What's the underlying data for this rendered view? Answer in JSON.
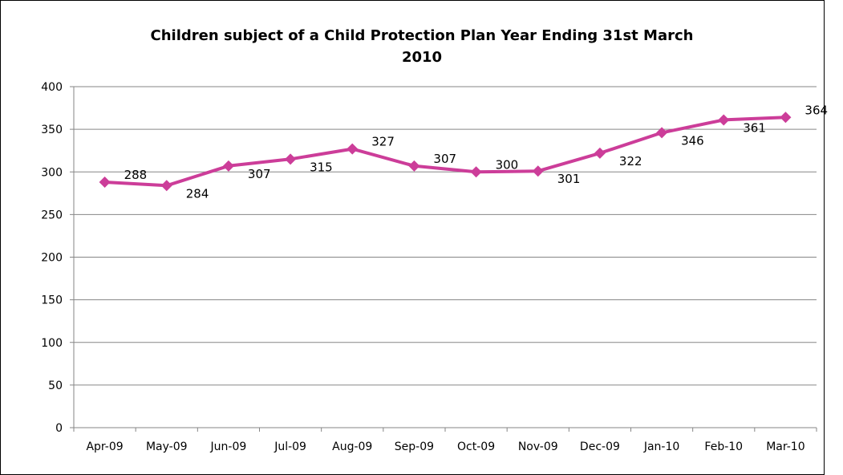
{
  "chart_data": {
    "type": "line",
    "title_line1": "Children subject of a Child Protection Plan Year Ending 31st March",
    "title_line2": "2010",
    "categories": [
      "Apr-09",
      "May-09",
      "Jun-09",
      "Jul-09",
      "Aug-09",
      "Sep-09",
      "Oct-09",
      "Nov-09",
      "Dec-09",
      "Jan-10",
      "Feb-10",
      "Mar-10"
    ],
    "series": [
      {
        "values": [
          288,
          284,
          307,
          315,
          327,
          307,
          300,
          301,
          322,
          346,
          361,
          364
        ]
      }
    ],
    "xlabel": "",
    "ylabel": "",
    "ylim": [
      0,
      400
    ],
    "yticks": [
      0,
      50,
      100,
      150,
      200,
      250,
      300,
      350,
      400
    ],
    "grid": true,
    "legend": "none",
    "colors": {
      "series": "#cc3d99",
      "grid": "#868686",
      "axis": "#868686"
    }
  }
}
